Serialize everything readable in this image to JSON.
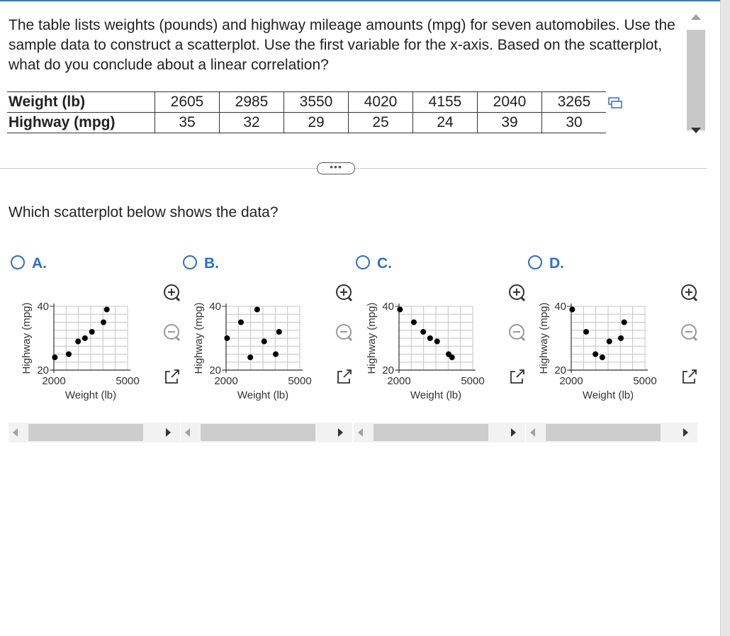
{
  "question": {
    "text": "The table lists weights (pounds) and highway mileage amounts (mpg) for seven automobiles. Use the sample data to construct a scatterplot. Use the first variable for the x-axis. Based on the scatterplot, what do you conclude about a linear correlation?"
  },
  "table": {
    "row1_label": "Weight (lb)",
    "row2_label": "Highway (mpg)",
    "weights": [
      "2605",
      "2985",
      "3550",
      "4020",
      "4155",
      "2040",
      "3265"
    ],
    "mpg": [
      "35",
      "32",
      "29",
      "25",
      "24",
      "39",
      "30"
    ]
  },
  "more_button": "•••",
  "prompt": "Which scatterplot below shows the data?",
  "options": [
    {
      "letter": "A.",
      "xlabel": "Weight (lb)",
      "ylabel": "Highway (mpg)",
      "x_ticks": [
        "2000",
        "5000"
      ],
      "y_ticks": [
        "20",
        "40"
      ]
    },
    {
      "letter": "B.",
      "xlabel": "Weight (lb)",
      "ylabel": "Highway (mpg)",
      "x_ticks": [
        "2000",
        "5000"
      ],
      "y_ticks": [
        "20",
        "40"
      ]
    },
    {
      "letter": "C.",
      "xlabel": "Weight (lb)",
      "ylabel": "Highway (mpg)",
      "x_ticks": [
        "2000",
        "5000"
      ],
      "y_ticks": [
        "20",
        "40"
      ]
    },
    {
      "letter": "D.",
      "xlabel": "Weight (lb)",
      "ylabel": "Highway (mpg)",
      "x_ticks": [
        "2000",
        "5000"
      ],
      "y_ticks": [
        "20",
        "40"
      ]
    }
  ],
  "chart_data": [
    {
      "type": "scatter",
      "xlabel": "Weight (lb)",
      "ylabel": "Highway (mpg)",
      "xlim": [
        2000,
        5000
      ],
      "ylim": [
        20,
        40
      ],
      "grid": true,
      "points": [
        [
          2040,
          24
        ],
        [
          2605,
          25
        ],
        [
          2985,
          29
        ],
        [
          3265,
          30
        ],
        [
          3550,
          32
        ],
        [
          4020,
          35
        ],
        [
          4155,
          39
        ]
      ]
    },
    {
      "type": "scatter",
      "xlabel": "Weight (lb)",
      "ylabel": "Highway (mpg)",
      "xlim": [
        2000,
        5000
      ],
      "ylim": [
        20,
        40
      ],
      "grid": true,
      "points": [
        [
          2040,
          30
        ],
        [
          2605,
          35
        ],
        [
          2985,
          24
        ],
        [
          3265,
          39
        ],
        [
          3550,
          29
        ],
        [
          4020,
          25
        ],
        [
          4155,
          32
        ]
      ]
    },
    {
      "type": "scatter",
      "xlabel": "Weight (lb)",
      "ylabel": "Highway (mpg)",
      "xlim": [
        2000,
        5000
      ],
      "ylim": [
        20,
        40
      ],
      "grid": true,
      "points": [
        [
          2040,
          39
        ],
        [
          2605,
          35
        ],
        [
          2985,
          32
        ],
        [
          3265,
          30
        ],
        [
          3550,
          29
        ],
        [
          4020,
          25
        ],
        [
          4155,
          24
        ]
      ]
    },
    {
      "type": "scatter",
      "xlabel": "Weight (lb)",
      "ylabel": "Highway (mpg)",
      "xlim": [
        2000,
        5000
      ],
      "ylim": [
        20,
        40
      ],
      "grid": true,
      "points": [
        [
          2040,
          39
        ],
        [
          2605,
          32
        ],
        [
          2985,
          25
        ],
        [
          3265,
          24
        ],
        [
          3550,
          29
        ],
        [
          4020,
          30
        ],
        [
          4155,
          35
        ]
      ]
    }
  ],
  "colors": {
    "accent": "#2f6fc7",
    "topline": "#2f7fb8"
  },
  "icons": [
    "copy-icon",
    "zoom-in-icon",
    "zoom-out-icon",
    "popout-icon"
  ]
}
